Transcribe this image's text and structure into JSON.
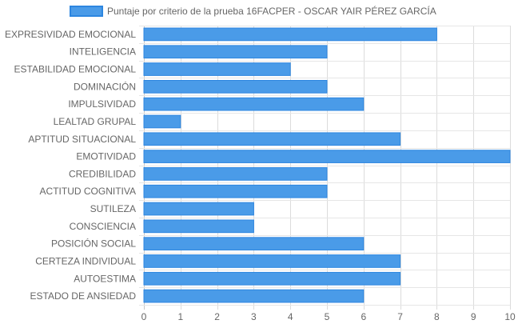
{
  "chart_data": {
    "type": "bar",
    "orientation": "horizontal",
    "categories": [
      "EXPRESIVIDAD EMOCIONAL",
      "INTELIGENCIA",
      "ESTABILIDAD EMOCIONAL",
      "DOMINACIÓN",
      "IMPULSIVIDAD",
      "LEALTAD GRUPAL",
      "APTITUD SITUACIONAL",
      "EMOTIVIDAD",
      "CREDIBILIDAD",
      "ACTITUD COGNITIVA",
      "SUTILEZA",
      "CONSCIENCIA",
      "POSICIÓN SOCIAL",
      "CERTEZA INDIVIDUAL",
      "AUTOESTIMA",
      "ESTADO DE ANSIEDAD"
    ],
    "series": [
      {
        "name": "Puntaje por criterio de la prueba 16FACPER - OSCAR YAIR PÉREZ GARCÍA",
        "values": [
          8,
          5,
          4,
          5,
          6,
          1,
          7,
          10,
          5,
          5,
          3,
          3,
          6,
          7,
          7,
          6
        ]
      }
    ],
    "xlim": [
      0,
      10
    ],
    "x_ticks": [
      "0",
      "1",
      "2",
      "3",
      "4",
      "5",
      "6",
      "7",
      "8",
      "9",
      "10"
    ],
    "grid": true,
    "legend_position": "top",
    "colors": {
      "bar_fill": "#4a9be8",
      "bar_border": "#2d86e0",
      "grid": "#e6e6e6",
      "text": "#666666"
    }
  }
}
